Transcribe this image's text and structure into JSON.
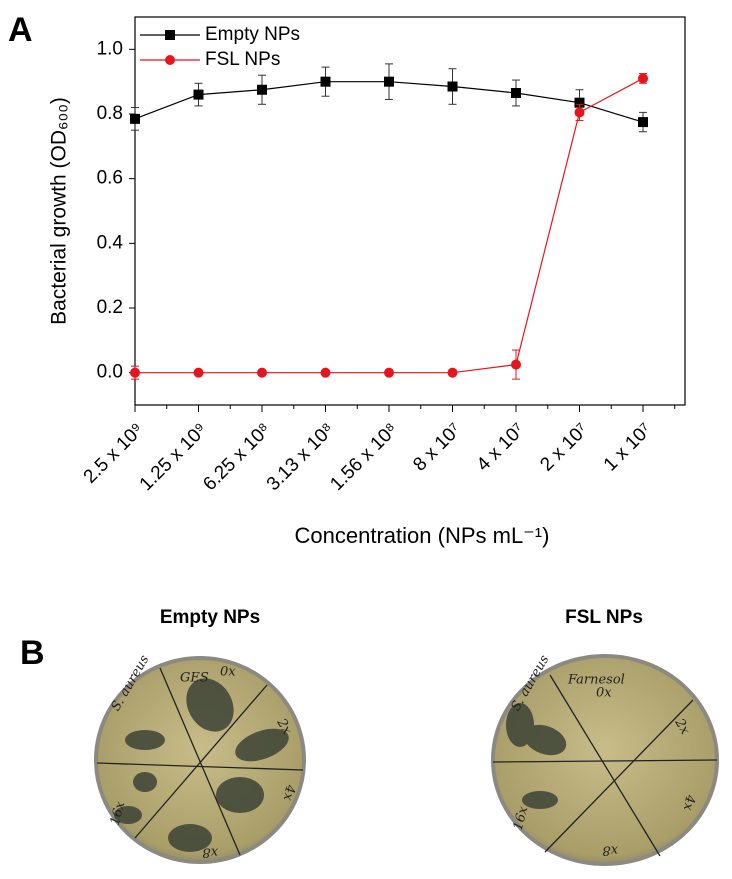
{
  "chart_data": {
    "type": "line",
    "y_label": "Bacterial growth (OD₆₀₀)",
    "x_label": "Concentration (NPs mL⁻¹)",
    "categories": [
      "2.5 x 10⁹",
      "1.25 x 10⁹",
      "6.25 x 10⁸",
      "3.13 x 10⁸",
      "1.56 x 10⁸",
      "8 x 10⁷",
      "4 x 10⁷",
      "2 x 10⁷",
      "1 x 10⁷"
    ],
    "series": [
      {
        "name": "Empty NPs",
        "color": "#000000",
        "marker": "square",
        "values": [
          0.785,
          0.86,
          0.875,
          0.9,
          0.9,
          0.885,
          0.865,
          0.835,
          0.775
        ],
        "errors": [
          0.035,
          0.035,
          0.045,
          0.045,
          0.055,
          0.055,
          0.04,
          0.04,
          0.03
        ]
      },
      {
        "name": "FSL NPs",
        "color": "#e8141c",
        "marker": "circle",
        "values": [
          0,
          0,
          0,
          0,
          0,
          0,
          0.025,
          0.805,
          0.91
        ],
        "errors": [
          0.02,
          0,
          0,
          0,
          0,
          0,
          0.045,
          0.025,
          0.015
        ]
      }
    ],
    "ylim": [
      -0.1,
      1.1
    ],
    "yticks": [
      {
        "value": 0,
        "label": "0.0"
      },
      0.2,
      0.4,
      0.6,
      0.8,
      {
        "value": 1,
        "label": "1.0"
      }
    ],
    "legend": "top-left"
  },
  "panel_a_label": "A",
  "panel_b": {
    "label": "B",
    "dishes": [
      {
        "title": "Empty NPs",
        "notes": [
          "S. aureus",
          "GES",
          "0x",
          "2x",
          "4x",
          "x8",
          "16x"
        ]
      },
      {
        "title": "FSL NPs",
        "notes": [
          "S. aureus",
          "Farnesol",
          "0x",
          "2x",
          "4x",
          "x8",
          "16x"
        ]
      }
    ]
  }
}
